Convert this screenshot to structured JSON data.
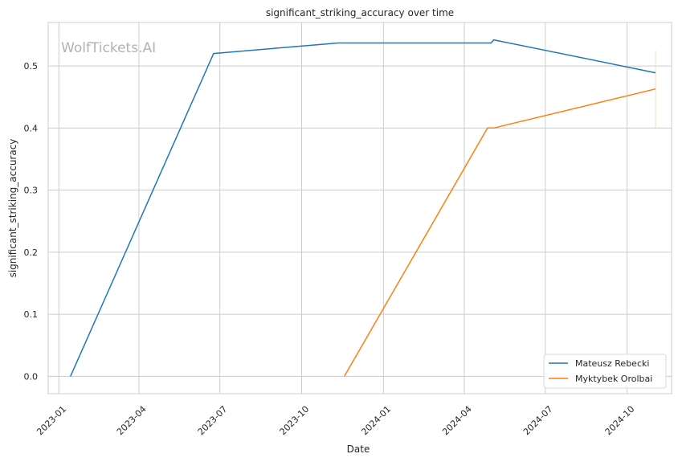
{
  "chart_data": {
    "type": "line",
    "title": "significant_striking_accuracy over time",
    "xlabel": "Date",
    "ylabel": "significant_striking_accuracy",
    "watermark": "WolfTickets.AI",
    "x_ticks": [
      "2023-01",
      "2023-04",
      "2023-07",
      "2023-10",
      "2024-01",
      "2024-04",
      "2024-07",
      "2024-10"
    ],
    "y_ticks": [
      0.0,
      0.1,
      0.2,
      0.3,
      0.4,
      0.5
    ],
    "y_tick_labels": [
      "0.0",
      "0.1",
      "0.2",
      "0.3",
      "0.4",
      "0.5"
    ],
    "xlim": [
      "2022-12-20",
      "2024-11-20"
    ],
    "ylim": [
      -0.028,
      0.57
    ],
    "grid": true,
    "legend_position": "lower-right",
    "series": [
      {
        "name": "Mateusz Rebecki",
        "color": "#1f77b4",
        "points": [
          {
            "x": "2023-01-14",
            "y": 0.0
          },
          {
            "x": "2023-06-24",
            "y": 0.52
          },
          {
            "x": "2023-11-11",
            "y": 0.537
          },
          {
            "x": "2024-05-01",
            "y": 0.537
          },
          {
            "x": "2024-05-04",
            "y": 0.542
          },
          {
            "x": "2024-11-02",
            "y": 0.489
          }
        ]
      },
      {
        "name": "Myktybek Orolbai",
        "color": "#ff7f0e",
        "points": [
          {
            "x": "2023-11-18",
            "y": 0.0
          },
          {
            "x": "2024-04-27",
            "y": 0.4
          },
          {
            "x": "2024-05-04",
            "y": 0.4
          },
          {
            "x": "2024-11-02",
            "y": 0.463
          }
        ]
      }
    ],
    "annotations": [
      {
        "x": "2024-11-02",
        "y_from": 0.4,
        "y_to": 0.525,
        "color": "#f5dcc4"
      }
    ]
  }
}
